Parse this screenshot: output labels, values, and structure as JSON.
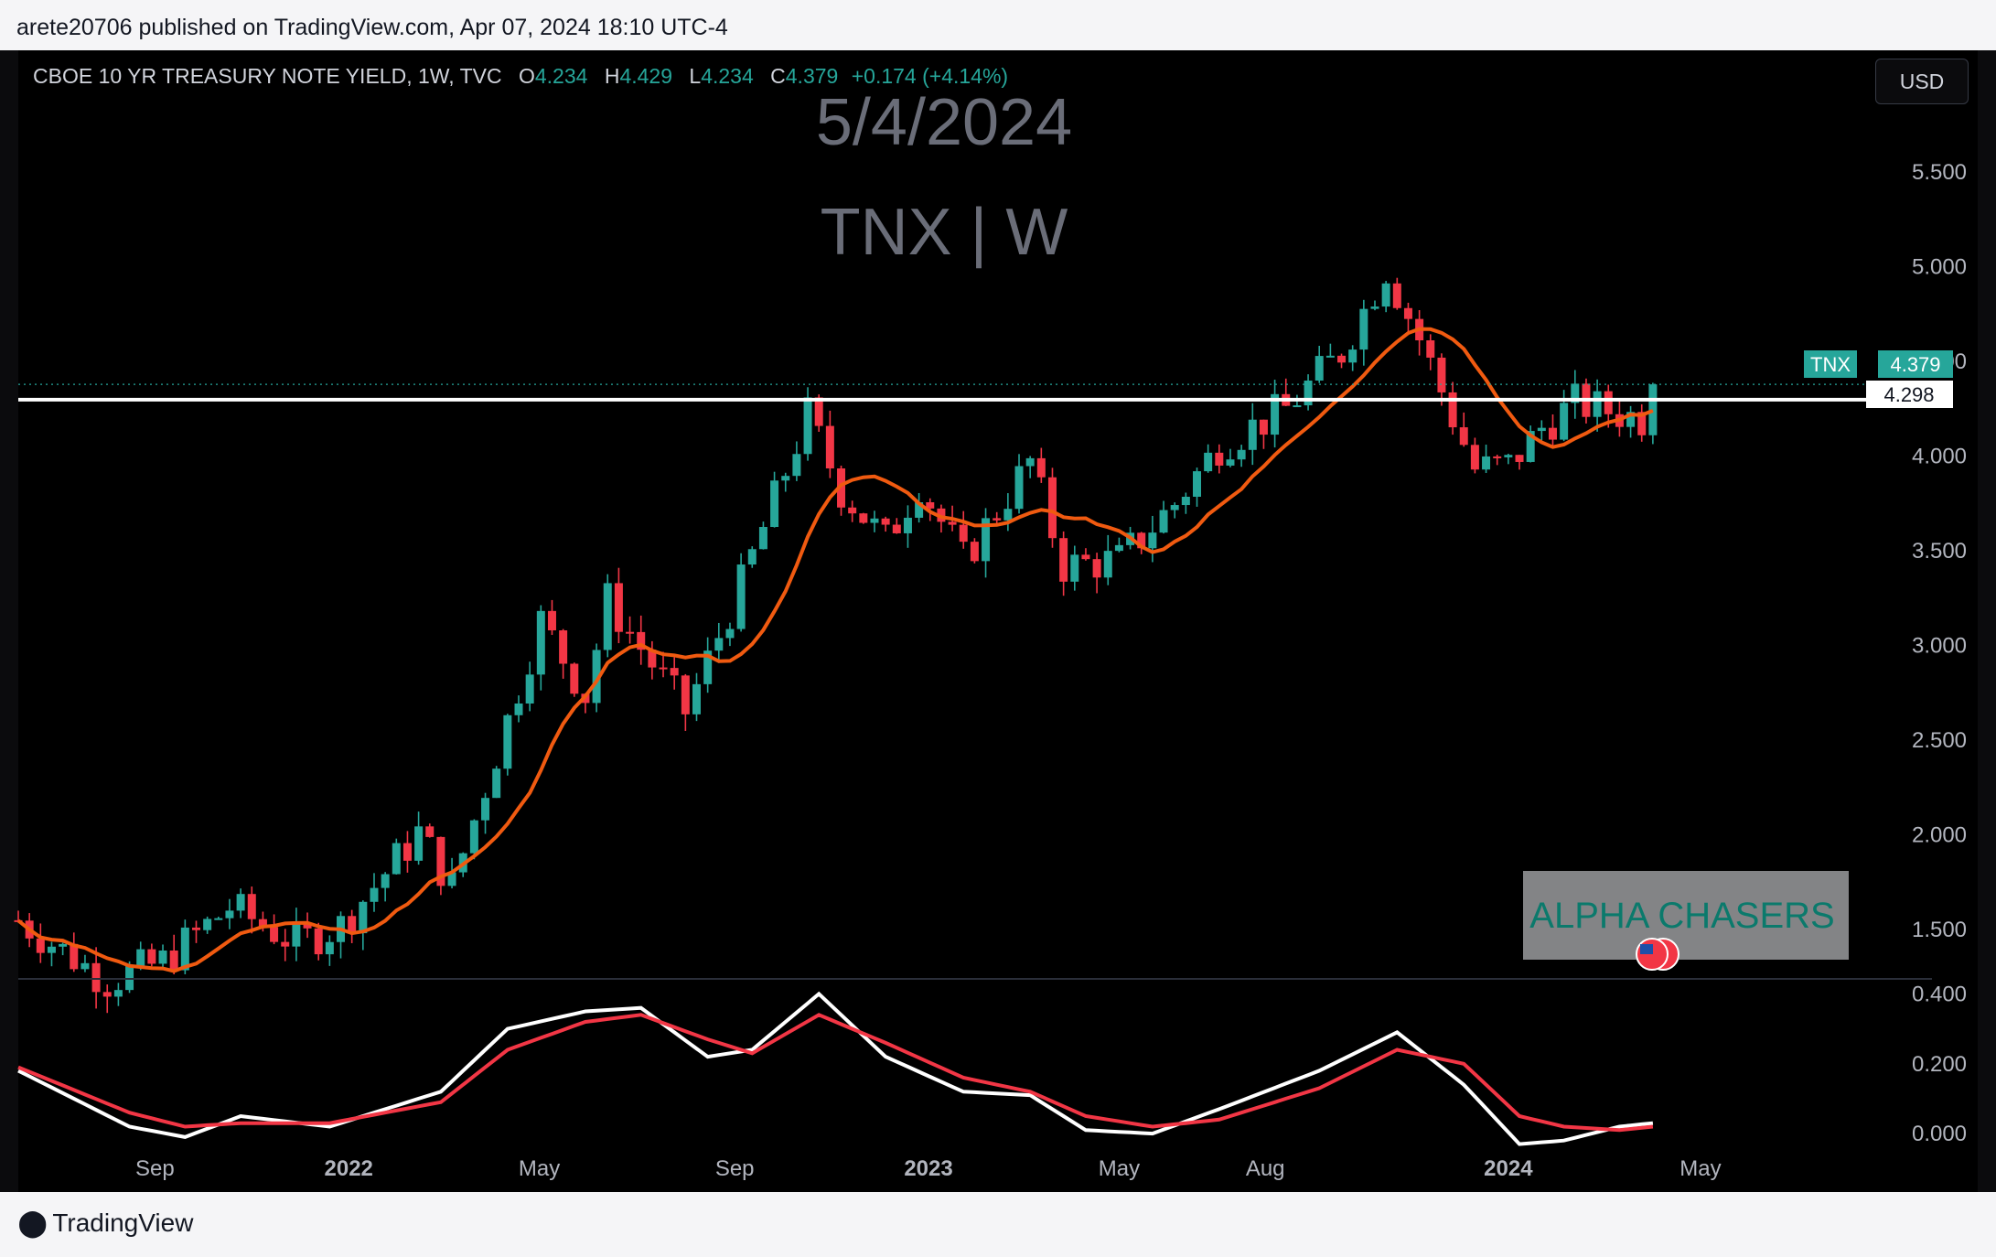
{
  "publisher_line": "arete20706 published on TradingView.com, Apr 07, 2024 18:10 UTC-4",
  "footer_brand": "TradingView",
  "legend": {
    "symbol": "CBOE 10 YR TREASURY NOTE YIELD, 1W, TVC",
    "o_label": "O",
    "o": "4.234",
    "h_label": "H",
    "h": "4.429",
    "l_label": "L",
    "l": "4.234",
    "c_label": "C",
    "c": "4.379",
    "change": "+0.174 (+4.14%)"
  },
  "currency_button": "USD",
  "overlay_texts": {
    "date": "5/4/2024",
    "ticker": "TNX | W",
    "watermark": "ALPHA CHASERS"
  },
  "price_tag": {
    "label": "TNX",
    "value": "4.379"
  },
  "level_tag": "4.298",
  "colors": {
    "up": "#26a69a",
    "down": "#f23645",
    "ma": "#f05a10",
    "osc_fast": "#ffffff",
    "osc_slow": "#f23645",
    "level": "#ffffff"
  },
  "chart_data": [
    {
      "type": "candlestick",
      "x_ticks": [
        {
          "label": "Sep",
          "date": "2021-09-01",
          "bold": false
        },
        {
          "label": "2022",
          "date": "2022-01-01",
          "bold": true
        },
        {
          "label": "May",
          "date": "2022-05-01",
          "bold": false
        },
        {
          "label": "Sep",
          "date": "2022-09-01",
          "bold": false
        },
        {
          "label": "2023",
          "date": "2023-01-01",
          "bold": true
        },
        {
          "label": "May",
          "date": "2023-05-01",
          "bold": false
        },
        {
          "label": "Aug",
          "date": "2023-08-01",
          "bold": false
        },
        {
          "label": "2024",
          "date": "2024-01-01",
          "bold": true
        },
        {
          "label": "May",
          "date": "2024-05-01",
          "bold": false
        }
      ],
      "x_range": [
        "2021-06-07",
        "2024-08-19"
      ],
      "y_ticks": [
        "5.500",
        "5.000",
        "4.500",
        "4.000",
        "3.500",
        "3.000",
        "2.500",
        "2.000",
        "1.500"
      ],
      "ylim": [
        1.25,
        5.78
      ],
      "horizontal_level": 4.298,
      "last_close": 4.379,
      "anchors": [
        [
          "2021-06-07",
          1.55
        ],
        [
          "2021-08-02",
          1.23
        ],
        [
          "2021-09-06",
          1.33
        ],
        [
          "2021-10-18",
          1.62
        ],
        [
          "2021-11-29",
          1.43
        ],
        [
          "2021-12-27",
          1.52
        ],
        [
          "2022-02-14",
          2.01
        ],
        [
          "2022-03-07",
          1.73
        ],
        [
          "2022-05-02",
          3.13
        ],
        [
          "2022-05-30",
          2.74
        ],
        [
          "2022-06-13",
          3.24
        ],
        [
          "2022-08-01",
          2.65
        ],
        [
          "2022-09-05",
          3.32
        ],
        [
          "2022-10-17",
          4.22
        ],
        [
          "2022-11-07",
          3.82
        ],
        [
          "2022-12-05",
          3.55
        ],
        [
          "2022-12-26",
          3.86
        ],
        [
          "2023-01-23",
          3.45
        ],
        [
          "2023-03-06",
          3.97
        ],
        [
          "2023-03-27",
          3.42
        ],
        [
          "2023-05-01",
          3.45
        ],
        [
          "2023-06-05",
          3.75
        ],
        [
          "2023-07-03",
          4.06
        ],
        [
          "2023-08-14",
          4.25
        ],
        [
          "2023-09-18",
          4.55
        ],
        [
          "2023-10-16",
          4.99
        ],
        [
          "2023-11-06",
          4.62
        ],
        [
          "2023-12-11",
          3.93
        ],
        [
          "2024-01-01",
          3.95
        ],
        [
          "2024-01-22",
          4.15
        ],
        [
          "2024-02-12",
          4.28
        ],
        [
          "2024-03-25",
          4.2
        ],
        [
          "2024-04-01",
          4.379
        ]
      ]
    },
    {
      "type": "line",
      "y_ticks": [
        "0.400",
        "0.200",
        "0.000"
      ],
      "ylim": [
        -0.06,
        0.43
      ],
      "series": [
        {
          "key": "fast",
          "anchors": [
            [
              "2021-06-07",
              0.18
            ],
            [
              "2021-08-16",
              0.02
            ],
            [
              "2021-09-20",
              -0.01
            ],
            [
              "2021-10-25",
              0.05
            ],
            [
              "2021-12-20",
              0.02
            ],
            [
              "2022-02-28",
              0.12
            ],
            [
              "2022-04-11",
              0.3
            ],
            [
              "2022-05-30",
              0.35
            ],
            [
              "2022-07-04",
              0.36
            ],
            [
              "2022-08-15",
              0.22
            ],
            [
              "2022-09-12",
              0.24
            ],
            [
              "2022-10-24",
              0.4
            ],
            [
              "2022-12-05",
              0.22
            ],
            [
              "2023-01-23",
              0.12
            ],
            [
              "2023-03-06",
              0.11
            ],
            [
              "2023-04-10",
              0.01
            ],
            [
              "2023-05-22",
              0.0
            ],
            [
              "2023-07-03",
              0.07
            ],
            [
              "2023-09-04",
              0.18
            ],
            [
              "2023-10-23",
              0.29
            ],
            [
              "2023-12-04",
              0.14
            ],
            [
              "2024-01-08",
              -0.03
            ],
            [
              "2024-02-05",
              -0.02
            ],
            [
              "2024-03-11",
              0.02
            ],
            [
              "2024-04-01",
              0.03
            ]
          ]
        },
        {
          "key": "slow",
          "anchors": [
            [
              "2021-06-07",
              0.19
            ],
            [
              "2021-08-16",
              0.06
            ],
            [
              "2021-09-20",
              0.02
            ],
            [
              "2021-10-25",
              0.03
            ],
            [
              "2021-12-20",
              0.03
            ],
            [
              "2022-02-28",
              0.09
            ],
            [
              "2022-04-11",
              0.24
            ],
            [
              "2022-05-30",
              0.32
            ],
            [
              "2022-07-04",
              0.34
            ],
            [
              "2022-08-15",
              0.27
            ],
            [
              "2022-09-12",
              0.23
            ],
            [
              "2022-10-24",
              0.34
            ],
            [
              "2022-12-05",
              0.26
            ],
            [
              "2023-01-23",
              0.16
            ],
            [
              "2023-03-06",
              0.12
            ],
            [
              "2023-04-10",
              0.05
            ],
            [
              "2023-05-22",
              0.02
            ],
            [
              "2023-07-03",
              0.04
            ],
            [
              "2023-09-04",
              0.13
            ],
            [
              "2023-10-23",
              0.24
            ],
            [
              "2023-12-04",
              0.2
            ],
            [
              "2024-01-08",
              0.05
            ],
            [
              "2024-02-05",
              0.02
            ],
            [
              "2024-03-11",
              0.01
            ],
            [
              "2024-04-01",
              0.02
            ]
          ]
        }
      ]
    }
  ]
}
